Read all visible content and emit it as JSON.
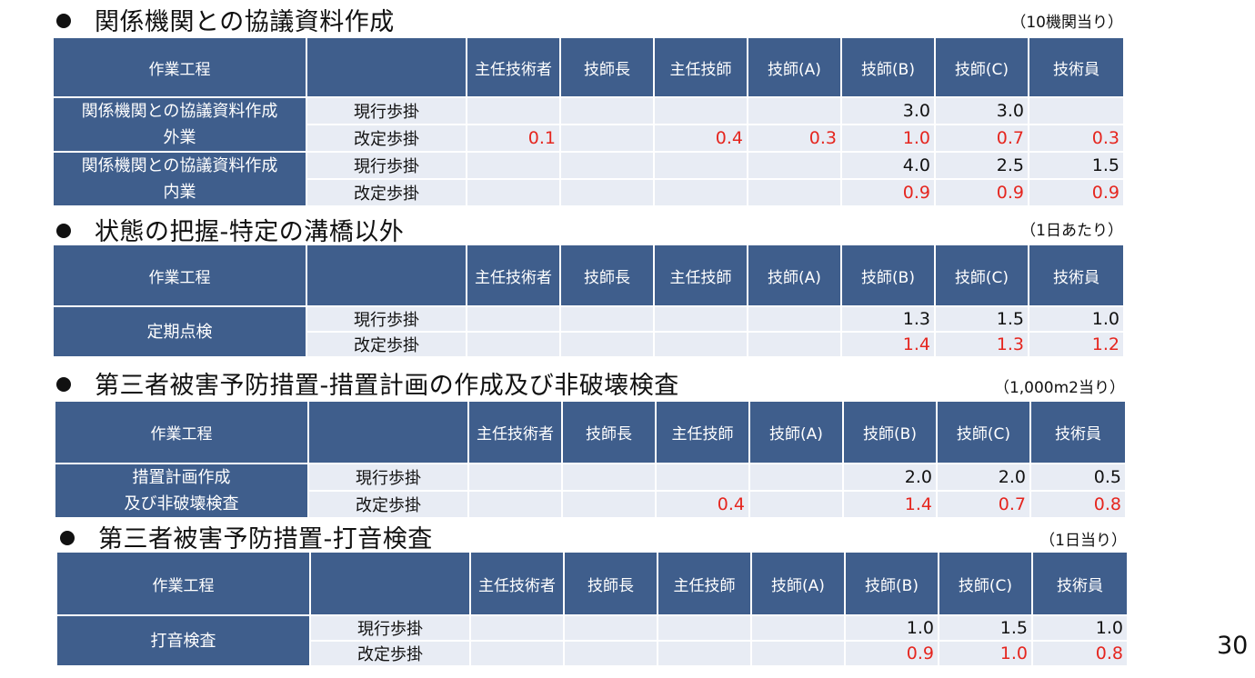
{
  "columns": [
    "主任技術者",
    "技師長",
    "主任技師",
    "技師(A)",
    "技師(B)",
    "技師(C)",
    "技術員"
  ],
  "process_header": "作業工程",
  "colors": {
    "header_bg": "#3F5E8C",
    "row_bg": "#E8ECF4",
    "revised_text": "#E5261F"
  },
  "sections": [
    {
      "title": "関係機関との協議資料作成",
      "unit_note": "（10機関当り）",
      "groups": [
        {
          "process": "関係機関との協議資料作成\n外業",
          "rows": [
            {
              "label": "現行歩掛",
              "revised": false,
              "values": [
                "",
                "",
                "",
                "",
                "3.0",
                "3.0",
                ""
              ]
            },
            {
              "label": "改定歩掛",
              "revised": true,
              "values": [
                "0.1",
                "",
                "0.4",
                "0.3",
                "1.0",
                "0.7",
                "0.3"
              ]
            }
          ]
        },
        {
          "process": "関係機関との協議資料作成\n内業",
          "rows": [
            {
              "label": "現行歩掛",
              "revised": false,
              "values": [
                "",
                "",
                "",
                "",
                "4.0",
                "2.5",
                "1.5"
              ]
            },
            {
              "label": "改定歩掛",
              "revised": true,
              "values": [
                "",
                "",
                "",
                "",
                "0.9",
                "0.9",
                "0.9"
              ]
            }
          ]
        }
      ]
    },
    {
      "title": "状態の把握-特定の溝橋以外",
      "unit_note": "（1日あたり）",
      "groups": [
        {
          "process": "定期点検",
          "rows": [
            {
              "label": "現行歩掛",
              "revised": false,
              "values": [
                "",
                "",
                "",
                "",
                "1.3",
                "1.5",
                "1.0"
              ]
            },
            {
              "label": "改定歩掛",
              "revised": true,
              "values": [
                "",
                "",
                "",
                "",
                "1.4",
                "1.3",
                "1.2"
              ]
            }
          ]
        }
      ]
    },
    {
      "title": "第三者被害予防措置-措置計画の作成及び非破壊検査",
      "unit_note": "（1,000m2当り）",
      "groups": [
        {
          "process": "措置計画作成\n及び非破壊検査",
          "rows": [
            {
              "label": "現行歩掛",
              "revised": false,
              "values": [
                "",
                "",
                "",
                "",
                "2.0",
                "2.0",
                "0.5"
              ]
            },
            {
              "label": "改定歩掛",
              "revised": true,
              "values": [
                "",
                "",
                "0.4",
                "",
                "1.4",
                "0.7",
                "0.8"
              ]
            }
          ]
        }
      ]
    },
    {
      "title": "第三者被害予防措置-打音検査",
      "unit_note": "（1日当り）",
      "groups": [
        {
          "process": "打音検査",
          "rows": [
            {
              "label": "現行歩掛",
              "revised": false,
              "values": [
                "",
                "",
                "",
                "",
                "1.0",
                "1.5",
                "1.0"
              ]
            },
            {
              "label": "改定歩掛",
              "revised": true,
              "values": [
                "",
                "",
                "",
                "",
                "0.9",
                "1.0",
                "0.8"
              ]
            }
          ]
        }
      ]
    }
  ],
  "page_number": "30"
}
